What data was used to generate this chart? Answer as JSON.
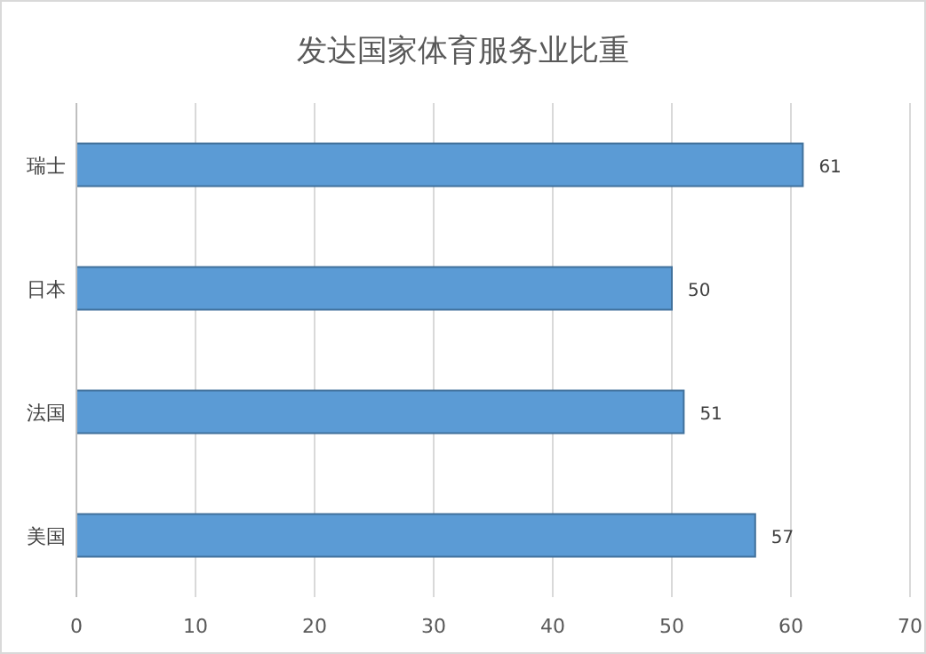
{
  "chart_data": {
    "type": "bar",
    "orientation": "horizontal",
    "title": "发达国家体育服务业比重",
    "categories": [
      "瑞士",
      "日本",
      "法国",
      "美国"
    ],
    "values": [
      61,
      50,
      51,
      57
    ],
    "color": "#5b9bd5",
    "xlim": [
      0,
      70
    ],
    "xticks": [
      0,
      10,
      20,
      30,
      40,
      50,
      60,
      70
    ],
    "grid": "x",
    "data_labels": true
  }
}
